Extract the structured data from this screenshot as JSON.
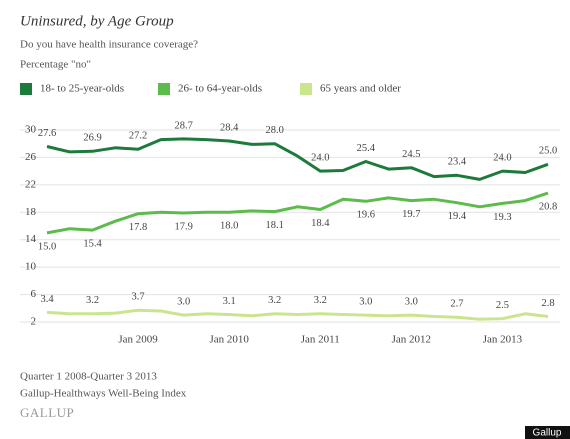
{
  "chart_data": {
    "type": "line",
    "title": "Uninsured, by Age Group",
    "subtitle": "Do you have health insurance coverage?",
    "y_label": "Percentage \"no\"",
    "footnotes": [
      "Quarter 1 2008-Quarter 3 2013",
      "Gallup-Healthways Well-Being Index"
    ],
    "source_logo": "GALLUP",
    "watermark": "Gallup",
    "categories": [
      null,
      null,
      null,
      null,
      "Jan 2009",
      null,
      null,
      null,
      "Jan 2010",
      null,
      null,
      null,
      "Jan 2011",
      null,
      null,
      null,
      "Jan 2012",
      null,
      null,
      null,
      "Jan 2013",
      null,
      null
    ],
    "ylim": [
      2,
      30
    ],
    "yticks": [
      2,
      6,
      10,
      14,
      18,
      22,
      26,
      30
    ],
    "grid": true,
    "series": [
      {
        "name": "18- to 25-year-olds",
        "color": "#1d7a3a",
        "values": [
          27.6,
          26.8,
          26.9,
          27.4,
          27.2,
          28.6,
          28.7,
          28.6,
          28.4,
          27.9,
          28.0,
          26.2,
          24.0,
          24.1,
          25.4,
          24.3,
          24.5,
          23.2,
          23.4,
          22.8,
          24.0,
          23.8,
          25.0
        ],
        "value_labels": [
          "27.6",
          null,
          "26.9",
          null,
          "27.2",
          null,
          "28.7",
          null,
          "28.4",
          null,
          "28.0",
          null,
          "24.0",
          null,
          "25.4",
          null,
          "24.5",
          null,
          "23.4",
          null,
          "24.0",
          null,
          "25.0"
        ]
      },
      {
        "name": "26- to 64-year-olds",
        "color": "#5dbb4b",
        "values": [
          15.0,
          15.6,
          15.4,
          16.7,
          17.8,
          18.0,
          17.9,
          18.0,
          18.0,
          18.2,
          18.1,
          18.8,
          18.4,
          19.9,
          19.6,
          20.1,
          19.7,
          19.9,
          19.4,
          18.8,
          19.3,
          19.7,
          20.8
        ],
        "value_labels": [
          "15.0",
          null,
          "15.4",
          null,
          "17.8",
          null,
          "17.9",
          null,
          "18.0",
          null,
          "18.1",
          null,
          "18.4",
          null,
          "19.6",
          null,
          "19.7",
          null,
          "19.4",
          null,
          "19.3",
          null,
          "20.8"
        ]
      },
      {
        "name": "65 years and older",
        "color": "#c9e68e",
        "values": [
          3.4,
          3.2,
          3.2,
          3.3,
          3.7,
          3.6,
          3.0,
          3.2,
          3.1,
          2.9,
          3.2,
          3.1,
          3.2,
          3.1,
          3.0,
          2.9,
          3.0,
          2.8,
          2.7,
          2.4,
          2.5,
          3.2,
          2.8
        ],
        "value_labels": [
          "3.4",
          null,
          "3.2",
          null,
          "3.7",
          null,
          "3.0",
          null,
          "3.1",
          null,
          "3.2",
          null,
          "3.2",
          null,
          "3.0",
          null,
          "3.0",
          null,
          "2.7",
          null,
          "2.5",
          null,
          "2.8"
        ]
      }
    ]
  }
}
